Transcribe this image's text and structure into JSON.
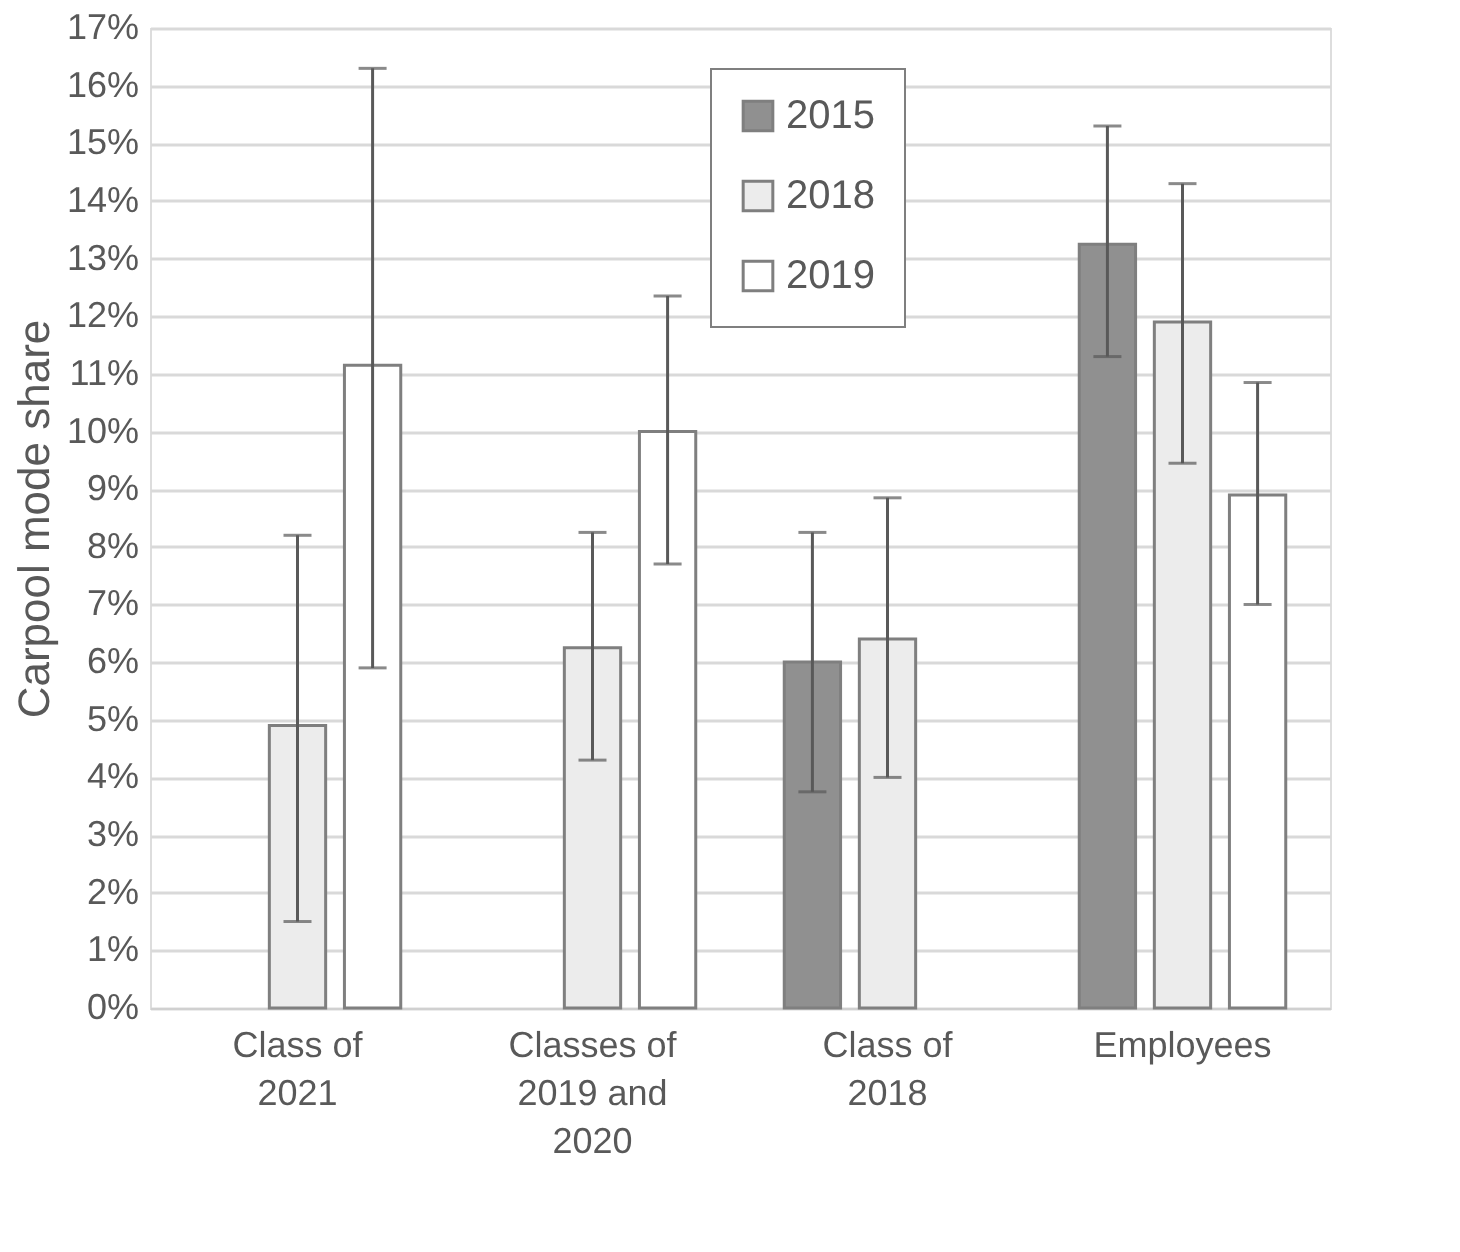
{
  "chart_data": {
    "type": "bar",
    "ylabel": "Carpool mode share",
    "categories": [
      "Class of 2021",
      "Classes of 2019 and 2020",
      "Class of 2018",
      "Employees"
    ],
    "series": [
      {
        "name": "2015",
        "color": "#909090",
        "values": [
          null,
          null,
          6.0,
          13.25
        ],
        "errors": [
          null,
          null,
          [
            3.75,
            8.25
          ],
          [
            11.3,
            15.3
          ]
        ]
      },
      {
        "name": "2018",
        "color": "#ececec",
        "values": [
          4.9,
          6.25,
          6.4,
          11.9
        ],
        "errors": [
          [
            1.5,
            8.2
          ],
          [
            4.3,
            8.25
          ],
          [
            4.0,
            8.85
          ],
          [
            9.45,
            14.3
          ]
        ]
      },
      {
        "name": "2019",
        "color": "#ffffff",
        "values": [
          11.15,
          10.0,
          null,
          8.9
        ],
        "errors": [
          [
            5.9,
            16.3
          ],
          [
            7.7,
            12.35
          ],
          null,
          [
            7.0,
            10.85
          ]
        ]
      }
    ],
    "ylim": [
      0,
      17
    ],
    "yticks": [
      {
        "value": 0,
        "label": "0%"
      },
      {
        "value": 1,
        "label": "1%"
      },
      {
        "value": 2,
        "label": "2%"
      },
      {
        "value": 3,
        "label": "3%"
      },
      {
        "value": 4,
        "label": "4%"
      },
      {
        "value": 5,
        "label": "5%"
      },
      {
        "value": 6,
        "label": "6%"
      },
      {
        "value": 7,
        "label": "7%"
      },
      {
        "value": 8,
        "label": "8%"
      },
      {
        "value": 9,
        "label": "9%"
      },
      {
        "value": 10,
        "label": "10%"
      },
      {
        "value": 11,
        "label": "11%"
      },
      {
        "value": 12,
        "label": "12%"
      },
      {
        "value": 13,
        "label": "13%"
      },
      {
        "value": 14,
        "label": "14%"
      },
      {
        "value": 15,
        "label": "15%"
      },
      {
        "value": 16,
        "label": "16%"
      },
      {
        "value": 17,
        "label": "17%"
      }
    ],
    "grid": "y",
    "legend": "top"
  }
}
